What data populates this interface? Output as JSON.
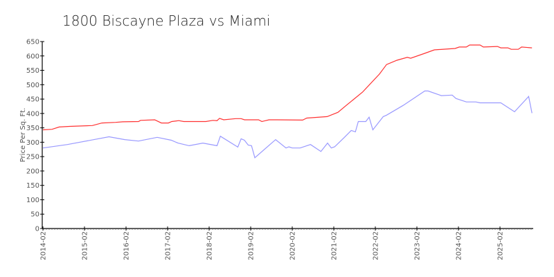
{
  "chart_data": {
    "type": "line",
    "title": "1800 Biscayne Plaza vs Miami",
    "xlabel": "",
    "ylabel": "Price Per Sq. Ft.",
    "ylim": [
      0,
      650
    ],
    "xlim": [
      2014.08,
      2025.9
    ],
    "yticks": [
      0,
      50,
      100,
      150,
      200,
      250,
      300,
      350,
      400,
      450,
      500,
      550,
      600,
      650
    ],
    "xtick_labels": [
      "2014-02",
      "2015-02",
      "2016-02",
      "2017-02",
      "2018-02",
      "2019-02",
      "2020-02",
      "2021-02",
      "2022-02",
      "2023-02",
      "2024-02",
      "2025-02"
    ],
    "grid": false,
    "series": [
      {
        "name": "1800 Biscayne Plaza",
        "color": "#ff3333",
        "x": [
          2014.08,
          2014.3,
          2014.47,
          2014.72,
          2015.27,
          2015.5,
          2015.83,
          2016.0,
          2016.38,
          2016.43,
          2016.77,
          2016.93,
          2017.1,
          2017.18,
          2017.35,
          2017.47,
          2018.0,
          2018.17,
          2018.27,
          2018.33,
          2018.43,
          2018.72,
          2018.85,
          2018.93,
          2019.27,
          2019.35,
          2019.52,
          2019.72,
          2020.33,
          2020.43,
          2020.92,
          2021.18,
          2021.38,
          2021.77,
          2022.18,
          2022.35,
          2022.6,
          2022.85,
          2022.93,
          2023.27,
          2023.5,
          2024.0,
          2024.1,
          2024.27,
          2024.35,
          2024.6,
          2024.68,
          2025.02,
          2025.1,
          2025.27,
          2025.35,
          2025.52,
          2025.6,
          2025.85
        ],
        "values": [
          343,
          345,
          353,
          355,
          358,
          367,
          369,
          371,
          372,
          376,
          378,
          367,
          367,
          372,
          375,
          372,
          372,
          376,
          375,
          383,
          378,
          382,
          382,
          378,
          378,
          372,
          378,
          378,
          377,
          384,
          389,
          404,
          428,
          474,
          537,
          570,
          585,
          595,
          592,
          609,
          621,
          626,
          631,
          631,
          638,
          638,
          631,
          633,
          628,
          628,
          623,
          623,
          631,
          628
        ]
      },
      {
        "name": "Miami",
        "color": "#9999ff",
        "x": [
          2014.08,
          2014.67,
          2015.67,
          2016.05,
          2016.38,
          2016.83,
          2017.17,
          2017.33,
          2017.6,
          2017.93,
          2018.27,
          2018.35,
          2018.77,
          2018.85,
          2018.93,
          2019.02,
          2019.1,
          2019.18,
          2019.68,
          2019.93,
          2020.0,
          2020.08,
          2020.27,
          2020.52,
          2020.77,
          2020.93,
          2021.02,
          2021.1,
          2021.33,
          2021.5,
          2021.6,
          2021.67,
          2021.85,
          2021.93,
          2022.02,
          2022.27,
          2022.35,
          2022.75,
          2023.27,
          2023.35,
          2023.67,
          2023.93,
          2024.02,
          2024.27,
          2024.5,
          2024.6,
          2025.1,
          2025.43,
          2025.77,
          2025.85
        ],
        "values": [
          280,
          292,
          319,
          309,
          304,
          317,
          307,
          297,
          288,
          297,
          288,
          321,
          283,
          312,
          307,
          290,
          288,
          246,
          309,
          280,
          284,
          280,
          280,
          292,
          268,
          297,
          280,
          284,
          316,
          341,
          336,
          372,
          372,
          387,
          343,
          389,
          394,
          428,
          478,
          478,
          462,
          464,
          452,
          440,
          440,
          437,
          437,
          406,
          459,
          401
        ]
      }
    ]
  }
}
